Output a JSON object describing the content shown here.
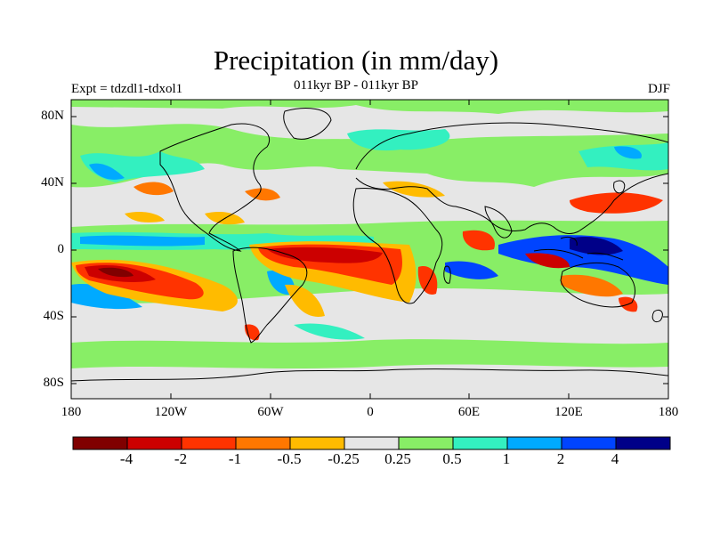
{
  "title": "Precipitation (in mm/day)",
  "subtitle": "011kyr BP - 011kyr BP",
  "experiment": "Expt = tdzdl1-tdxol1",
  "season": "DJF",
  "map": {
    "lat_labels": [
      "80N",
      "40N",
      "0",
      "40S",
      "80S"
    ],
    "lon_labels": [
      "180",
      "120W",
      "60W",
      "0",
      "60E",
      "120E",
      "180"
    ],
    "background_color": "#e6e6e6"
  },
  "colorbar": {
    "labels": [
      "-4",
      "-2",
      "-1",
      "-0.5",
      "-0.25",
      "0.25",
      "0.5",
      "1",
      "2",
      "4"
    ],
    "colors": [
      "#800000",
      "#cc0000",
      "#ff3300",
      "#ff7700",
      "#ffbb00",
      "#e6e6e6",
      "#88ee66",
      "#33f0c0",
      "#00aaff",
      "#0044ff",
      "#000088"
    ]
  }
}
